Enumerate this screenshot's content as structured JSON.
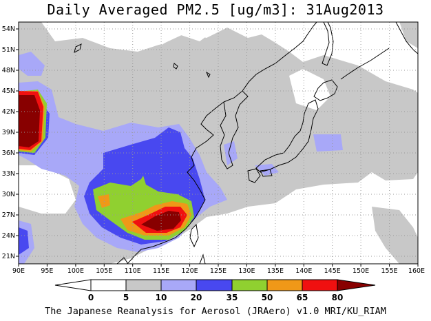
{
  "title": "Daily Averaged PM2.5 [ug/m3]: 31Aug2013",
  "credit": "The Japanese Reanalysis for Aerosol (JRAero) v1.0 MRI/KU_RIAM",
  "map": {
    "lon_range": [
      90,
      160
    ],
    "lat_range": [
      20,
      55
    ],
    "lon_ticks": [
      "90E",
      "95E",
      "100E",
      "105E",
      "110E",
      "115E",
      "120E",
      "125E",
      "130E",
      "135E",
      "140E",
      "145E",
      "150E",
      "155E",
      "160E"
    ],
    "lat_ticks": [
      "54N",
      "51N",
      "48N",
      "45N",
      "42N",
      "39N",
      "36N",
      "33N",
      "30N",
      "27N",
      "24N",
      "21N"
    ],
    "grid": "dotted"
  },
  "colorbar": {
    "levels": [
      "0",
      "5",
      "10",
      "20",
      "35",
      "50",
      "65",
      "80"
    ],
    "colors": [
      "#ffffff",
      "#c8c8c8",
      "#a8a8f8",
      "#4848f0",
      "#90d030",
      "#f09818",
      "#f01010",
      "#880000"
    ]
  }
}
